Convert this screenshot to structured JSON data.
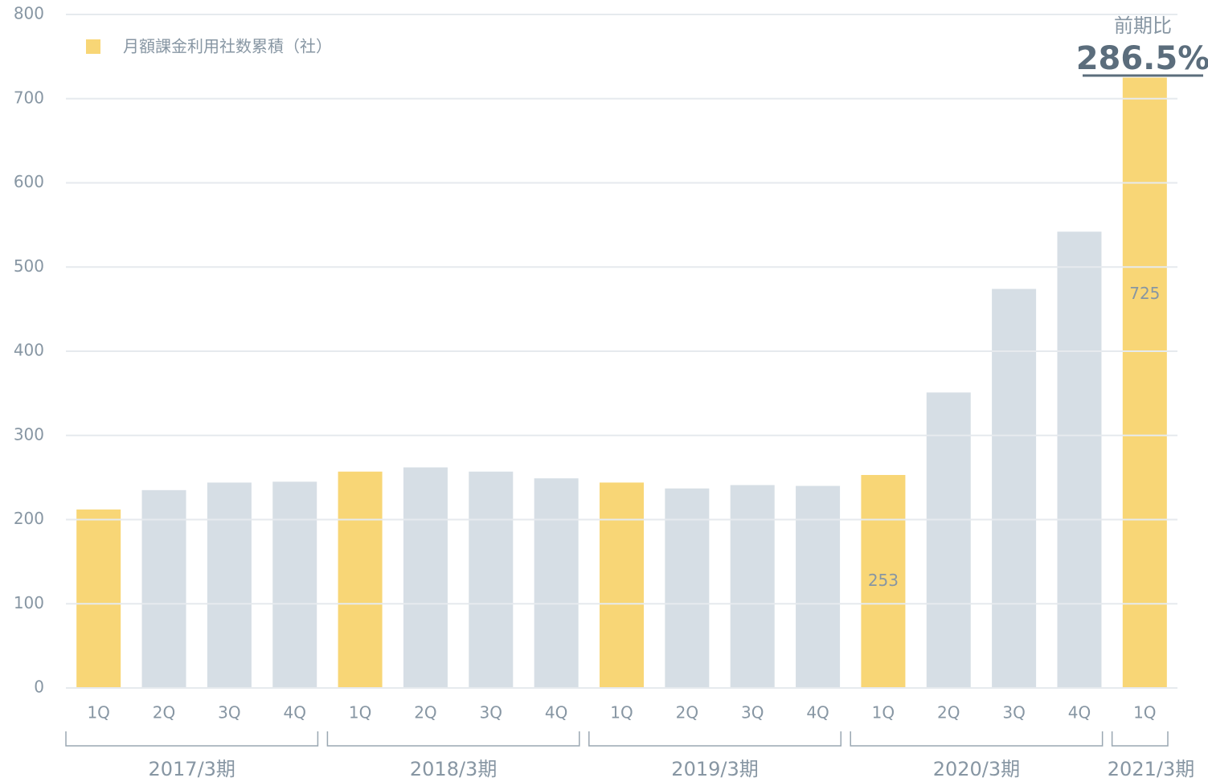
{
  "chart_data": {
    "type": "bar",
    "legend": "top-left",
    "series": [
      {
        "name": "月額課金利用社数累積（社）",
        "color": "#f8d676",
        "values": [
          212,
          235,
          244,
          245,
          257,
          262,
          257,
          249,
          244,
          237,
          241,
          240,
          253,
          351,
          474,
          542,
          725
        ],
        "bar_colors": [
          "#f8d676",
          "#d6dee5",
          "#d6dee5",
          "#d6dee5",
          "#f8d676",
          "#d6dee5",
          "#d6dee5",
          "#d6dee5",
          "#f8d676",
          "#d6dee5",
          "#d6dee5",
          "#d6dee5",
          "#f8d676",
          "#d6dee5",
          "#d6dee5",
          "#d6dee5",
          "#f8d676"
        ],
        "value_labels": [
          null,
          null,
          null,
          null,
          null,
          null,
          null,
          null,
          null,
          null,
          null,
          null,
          "253",
          null,
          null,
          null,
          "725"
        ]
      }
    ],
    "groups": [
      {
        "name": "2017/3期",
        "categories": [
          "1Q",
          "2Q",
          "3Q",
          "4Q"
        ]
      },
      {
        "name": "2018/3期",
        "categories": [
          "1Q",
          "2Q",
          "3Q",
          "4Q"
        ]
      },
      {
        "name": "2019/3期",
        "categories": [
          "1Q",
          "2Q",
          "3Q",
          "4Q"
        ]
      },
      {
        "name": "2020/3期",
        "categories": [
          "1Q",
          "2Q",
          "3Q",
          "4Q"
        ]
      },
      {
        "name": "2021/3期",
        "categories": [
          "1Q"
        ]
      }
    ],
    "annotation": {
      "text": "前期比",
      "value": "286.5%"
    },
    "ylim": [
      0,
      800
    ],
    "yticks": [
      0,
      100,
      200,
      300,
      400,
      500,
      600,
      700,
      800
    ],
    "grid": true
  }
}
